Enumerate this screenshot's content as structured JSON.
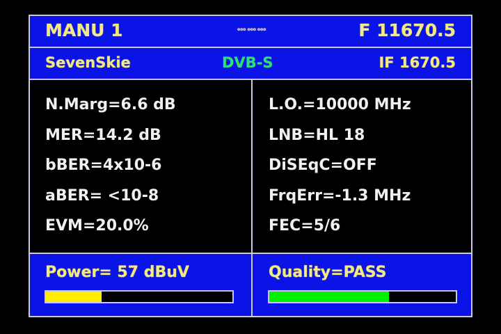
{
  "header": {
    "mode": "MANU 1",
    "center_indicator": "ooo ooo ooo",
    "frequency": "F 11670.5"
  },
  "subheader": {
    "satellite": "SevenSkie",
    "standard": "DVB-S",
    "if": "IF 1670.5"
  },
  "left_params": [
    "N.Marg=6.6 dB",
    "MER=14.2 dB",
    "bBER=4x10-6",
    "aBER= <10-8",
    "EVM=20.0%"
  ],
  "right_params": [
    "L.O.=10000 MHz",
    "LNB=HL 18",
    "DiSEqC=OFF",
    "FrqErr=-1.3 MHz",
    "FEC=5/6"
  ],
  "power": {
    "label": "Power= 57 dBuV",
    "level_percent": 30,
    "color": "#ffec00"
  },
  "quality": {
    "label": "Quality=PASS",
    "level_percent": 64,
    "color": "#00f000"
  },
  "colors": {
    "panel": "#0a14e6",
    "text_yellow": "#f4e98a",
    "standard_green": "#30e070"
  }
}
